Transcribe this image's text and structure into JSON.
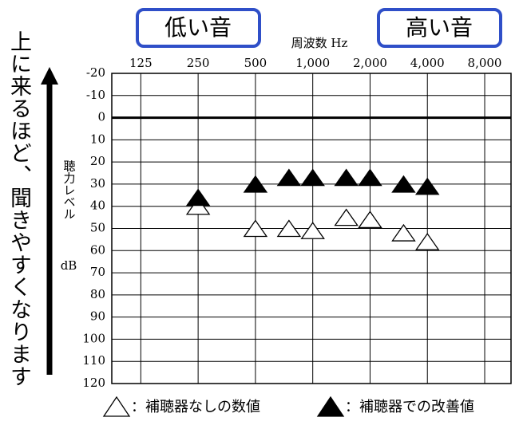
{
  "chart_data": {
    "type": "scatter",
    "x_label": "周波数 Hz",
    "y_label": "聴力レベル",
    "y_unit": "dB",
    "note": "上に来るほど、聞きやすくなります",
    "low_label": "低い音",
    "high_label": "高い音",
    "x_log": true,
    "xlim": [
      88,
      11000
    ],
    "xticks": [
      125,
      250,
      500,
      {
        "value": 1000,
        "label": "1,000"
      },
      {
        "value": 2000,
        "label": "2,000"
      },
      {
        "value": 4000,
        "label": "4,000"
      },
      {
        "value": 8000,
        "label": "8,000"
      }
    ],
    "ylim": [
      120,
      -20
    ],
    "yticks": [
      -20,
      -10,
      0,
      10,
      20,
      30,
      40,
      50,
      60,
      70,
      80,
      90,
      100,
      110,
      120
    ],
    "grid": true,
    "x": [
      250,
      500,
      750,
      1000,
      1500,
      2000,
      3000,
      4000
    ],
    "series": [
      {
        "name": "：補聴器なしの数値",
        "color": "#ffffff",
        "values": [
          40,
          50,
          50,
          51,
          45,
          46,
          52,
          56
        ]
      },
      {
        "name": "：補聴器での改善値",
        "color": "#000000",
        "values": [
          36,
          30,
          27,
          27,
          27,
          27,
          30,
          31
        ]
      }
    ]
  }
}
